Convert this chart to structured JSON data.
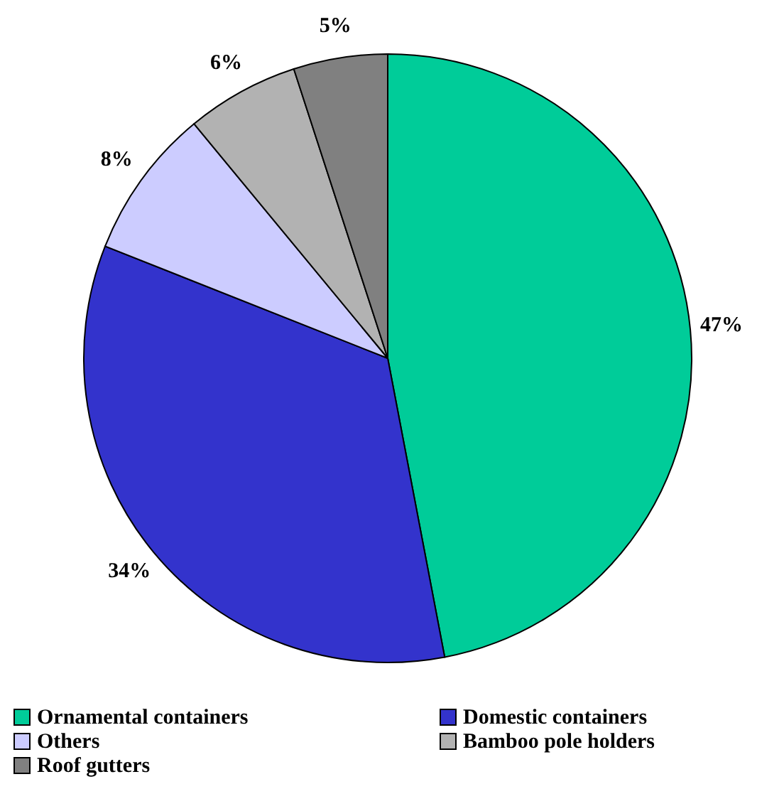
{
  "chart_data": {
    "type": "pie",
    "categories": [
      "Ornamental containers",
      "Domestic containers",
      "Others",
      "Bamboo pole holders",
      "Roof gutters"
    ],
    "values": [
      47,
      34,
      8,
      6,
      5
    ],
    "colors": [
      "#00cc99",
      "#3333cc",
      "#ccccff",
      "#b2b2b2",
      "#808080"
    ],
    "value_labels": [
      "47%",
      "34%",
      "8%",
      "6%",
      "5%"
    ],
    "legend": "bottom"
  }
}
